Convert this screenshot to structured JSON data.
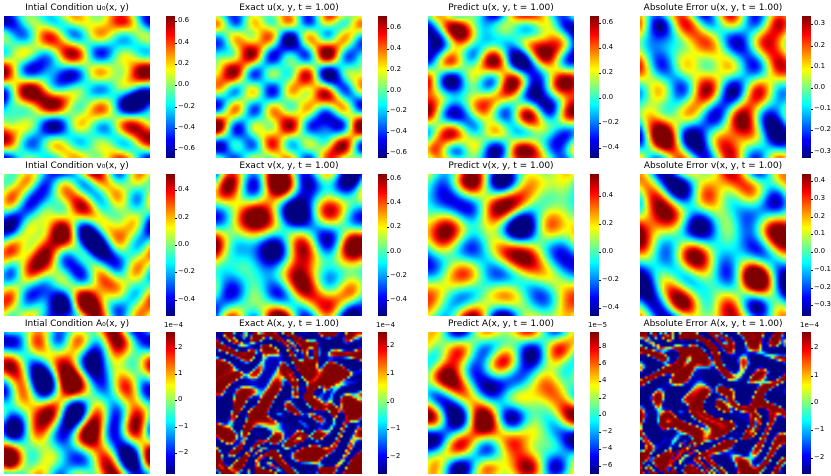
{
  "colormap": "jet",
  "chart_data": [
    {
      "type": "heatmap",
      "title": "Intial Condition $u_0(x,y)$",
      "display_title": "Intial Condition u₀(x, y)",
      "colorbar": {
        "multiplier": "",
        "ticks": [
          "0.6",
          "0.4",
          "0.2",
          "0.0",
          "−0.2",
          "−0.4",
          "−0.6"
        ],
        "range": [
          -0.68,
          0.65
        ]
      }
    },
    {
      "type": "heatmap",
      "title": "Exact $u(x,y,t=1.00)$",
      "display_title": "Exact u(x, y, t = 1.00)",
      "colorbar": {
        "multiplier": "",
        "ticks": [
          "0.6",
          "0.4",
          "0.2",
          "0.0",
          "−0.2",
          "−0.4",
          "−0.6"
        ],
        "range": [
          -0.65,
          0.72
        ]
      }
    },
    {
      "type": "heatmap",
      "title": "Predict $u(x,y,t=1.00)$",
      "display_title": "Predict u(x, y, t = 1.00)",
      "colorbar": {
        "multiplier": "",
        "ticks": [
          "0.6",
          "0.4",
          "0.2",
          "0.0",
          "−0.2",
          "−0.4"
        ],
        "range": [
          -0.48,
          0.66
        ]
      }
    },
    {
      "type": "heatmap",
      "title": "Absolute Error $u(x,y,t=1.00)$",
      "display_title": "Absolute Error u(x, y, t = 1.00)",
      "colorbar": {
        "multiplier": "",
        "ticks": [
          "0.3",
          "0.2",
          "0.1",
          "0.0",
          "−0.1",
          "−0.2",
          "−0.3"
        ],
        "range": [
          -0.33,
          0.34
        ]
      }
    },
    {
      "type": "heatmap",
      "title": "Intial Condition $v_0(x,y)$",
      "display_title": "Intial Condition v₀(x, y)",
      "colorbar": {
        "multiplier": "",
        "ticks": [
          "0.4",
          "0.2",
          "0.0",
          "−0.2",
          "−0.4"
        ],
        "range": [
          -0.52,
          0.52
        ]
      }
    },
    {
      "type": "heatmap",
      "title": "Exact $v(x,y,t=1.00)$",
      "display_title": "Exact v(x, y, t = 1.00)",
      "colorbar": {
        "multiplier": "",
        "ticks": [
          "0.6",
          "0.4",
          "0.2",
          "0.0",
          "−0.2",
          "−0.4"
        ],
        "range": [
          -0.53,
          0.64
        ]
      }
    },
    {
      "type": "heatmap",
      "title": "Predict $v(x,y,t=1.00)$",
      "display_title": "Predict v(x, y, t = 1.00)",
      "colorbar": {
        "multiplier": "",
        "ticks": [
          "0.4",
          "0.2",
          "0.0",
          "−0.2",
          "−0.4"
        ],
        "range": [
          -0.46,
          0.56
        ]
      }
    },
    {
      "type": "heatmap",
      "title": "Absolute Error $v(x,y,t=1.00)$",
      "display_title": "Absolute Error v(x, y, t = 1.00)",
      "colorbar": {
        "multiplier": "",
        "ticks": [
          "0.4",
          "0.3",
          "0.2",
          "0.1",
          "0.0",
          "−0.1",
          "−0.2",
          "−0.3"
        ],
        "range": [
          -0.36,
          0.44
        ]
      }
    },
    {
      "type": "heatmap",
      "title": "Intial Condition $A_0(x,y)$",
      "display_title": "Intial Condition A₀(x, y)",
      "colorbar": {
        "multiplier": "1e−4",
        "ticks": [
          "2",
          "1",
          "0",
          "−1",
          "−2"
        ],
        "range": [
          -2.8,
          2.6
        ]
      }
    },
    {
      "type": "heatmap",
      "title": "Exact $A(x,y,t=1.00)$",
      "display_title": "Exact A(x, y, t = 1.00)",
      "colorbar": {
        "multiplier": "1e−4",
        "ticks": [
          "2",
          "1",
          "0",
          "−1",
          "−2"
        ],
        "range": [
          -2.6,
          2.5
        ]
      }
    },
    {
      "type": "heatmap",
      "title": "Predict $A(x,y,t=1.00)$",
      "display_title": "Predict A(x, y, t = 1.00)",
      "colorbar": {
        "multiplier": "1e−5",
        "ticks": [
          "8",
          "6",
          "4",
          "2",
          "0",
          "−2",
          "−4",
          "−6"
        ],
        "range": [
          -7.0,
          9.8
        ]
      }
    },
    {
      "type": "heatmap",
      "title": "Absolute Error $A(x,y,t=1.00)$",
      "display_title": "Absolute Error A(x, y, t = 1.00)",
      "colorbar": {
        "multiplier": "1e−4",
        "ticks": [
          "2",
          "1",
          "0",
          "−1",
          "−2"
        ],
        "range": [
          -2.6,
          2.6
        ]
      }
    }
  ]
}
